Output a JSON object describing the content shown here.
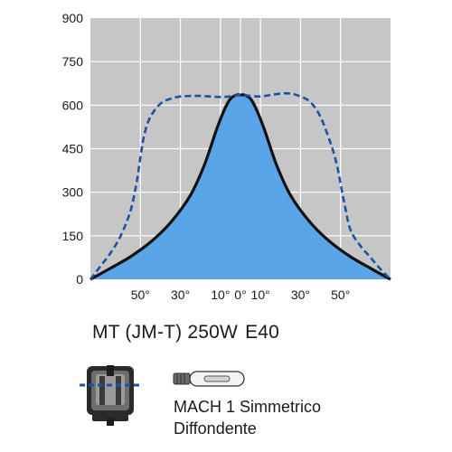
{
  "chart_data": {
    "type": "line",
    "title": "",
    "xlabel": "",
    "ylabel": "",
    "ylim": [
      0,
      900
    ],
    "yticks": [
      0,
      150,
      300,
      450,
      600,
      750,
      900
    ],
    "xticks": [
      {
        "value": -50,
        "label": "50°"
      },
      {
        "value": -30,
        "label": "30°"
      },
      {
        "value": -10,
        "label": "10°"
      },
      {
        "value": 0,
        "label": "0°"
      },
      {
        "value": 10,
        "label": "10°"
      },
      {
        "value": 30,
        "label": "30°"
      },
      {
        "value": 50,
        "label": "50°"
      }
    ],
    "xlim": [
      -75,
      75
    ],
    "grid": true,
    "legend": "none",
    "colors": {
      "plot_background": "#c6c6c6",
      "grid": "#ffffff",
      "fill": "#5aa5e8",
      "solid_line": "#111111",
      "dashed_line": "#1a52a8"
    },
    "series": [
      {
        "style": "solid",
        "filled": true,
        "x": [
          -75,
          -65,
          -55,
          -45,
          -35,
          -25,
          -18,
          -12,
          -8,
          -5,
          -2,
          0,
          2,
          5,
          8,
          12,
          18,
          25,
          35,
          45,
          55,
          65,
          75
        ],
        "y": [
          0,
          38,
          78,
          128,
          195,
          290,
          395,
          515,
          585,
          622,
          635,
          635,
          635,
          622,
          585,
          515,
          395,
          290,
          195,
          128,
          78,
          38,
          0
        ]
      },
      {
        "style": "dashed",
        "filled": false,
        "x": [
          -75,
          -70,
          -65,
          -60,
          -55,
          -52,
          -50,
          -48,
          -45,
          -40,
          -35,
          -30,
          -25,
          -20,
          -15,
          -10,
          -5,
          0,
          5,
          10,
          15,
          20,
          25,
          30,
          35,
          40,
          45,
          48,
          50,
          52,
          55,
          60,
          65,
          70,
          75
        ],
        "y": [
          0,
          45,
          90,
          148,
          235,
          330,
          420,
          500,
          560,
          605,
          622,
          630,
          632,
          632,
          630,
          628,
          630,
          635,
          632,
          630,
          635,
          640,
          640,
          630,
          610,
          560,
          470,
          400,
          330,
          260,
          170,
          115,
          75,
          35,
          0
        ]
      }
    ]
  },
  "product": {
    "model": "MT (JM-T) 250W",
    "socket": "E40",
    "description_line1": "MACH 1 Simmetrico",
    "description_line2": "Diffondente"
  },
  "icons": {
    "fixture": "lamp-fixture-icon",
    "lamp": "metal-halide-bulb-icon"
  }
}
